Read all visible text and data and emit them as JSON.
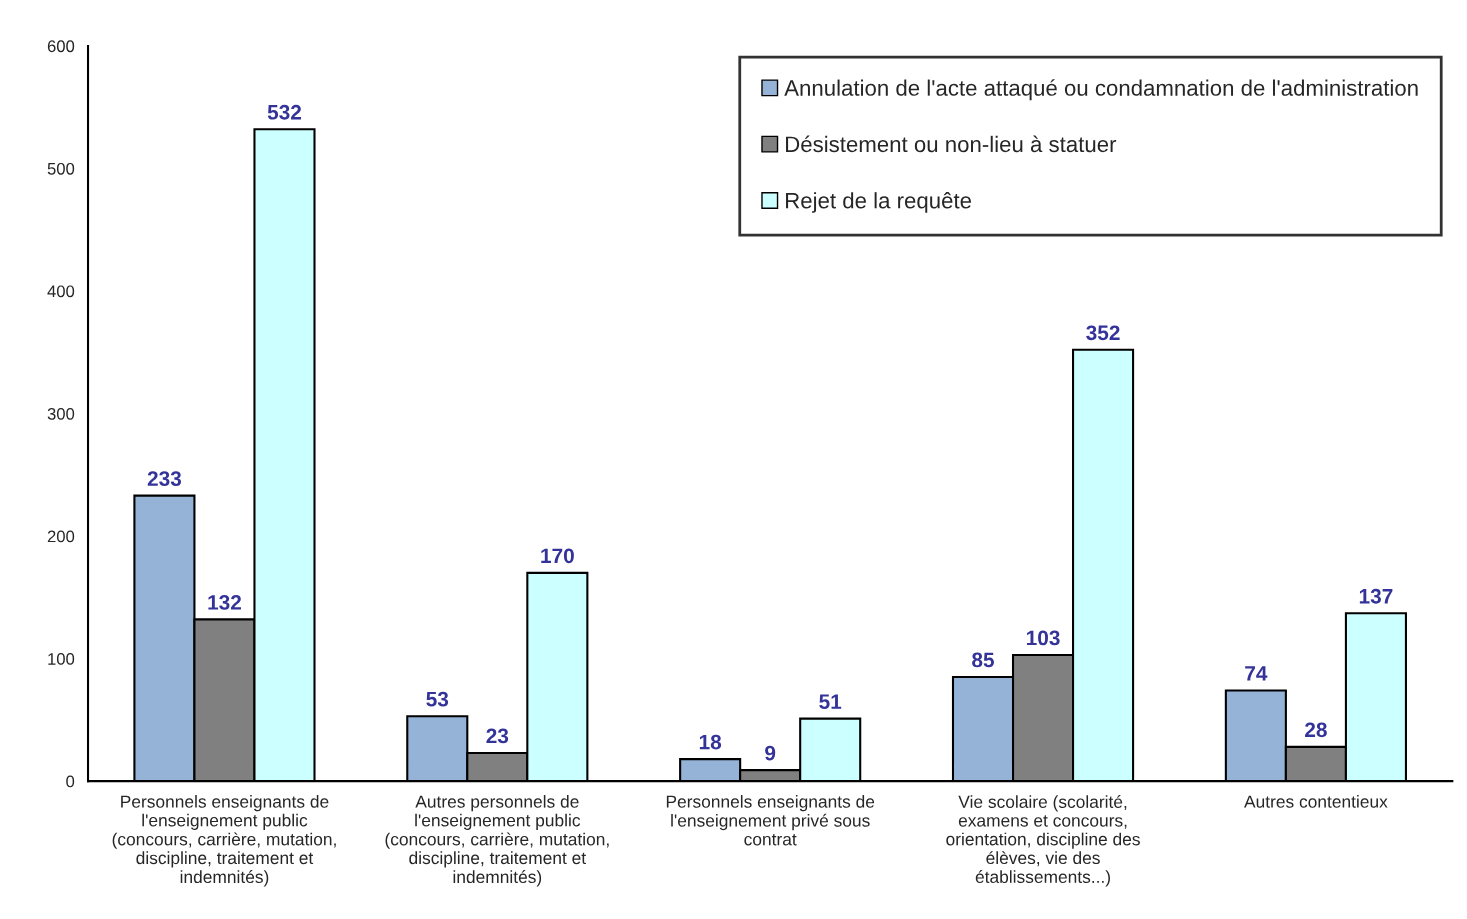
{
  "chart_data": {
    "type": "bar",
    "categories": [
      "Personnels enseignants de\nl'enseignement public\n(concours, carrière, mutation,\ndiscipline, traitement et\nindemnités)",
      "Autres personnels de\nl'enseignement public\n(concours, carrière, mutation,\ndiscipline, traitement et\nindemnités)",
      "Personnels enseignants de\nl'enseignement privé sous\ncontrat",
      "Vie scolaire (scolarité,\nexamens et concours,\norientation, discipline des\nélèves, vie des\nétablissements...)",
      "Autres contentieux"
    ],
    "series": [
      {
        "name": "Annulation de l'acte attaqué ou condamnation de l'administration",
        "color": "#95b3d7",
        "values": [
          233,
          53,
          18,
          85,
          74
        ]
      },
      {
        "name": "Désistement ou non-lieu à statuer",
        "color": "#808080",
        "values": [
          132,
          23,
          9,
          103,
          28
        ]
      },
      {
        "name": "Rejet de la requête",
        "color": "#ccffff",
        "values": [
          532,
          170,
          51,
          352,
          137
        ]
      }
    ],
    "ylim": [
      0,
      600
    ],
    "yticks": [
      0,
      100,
      200,
      300,
      400,
      500,
      600
    ],
    "data_labels": true,
    "legend": "top right",
    "grid": false
  }
}
